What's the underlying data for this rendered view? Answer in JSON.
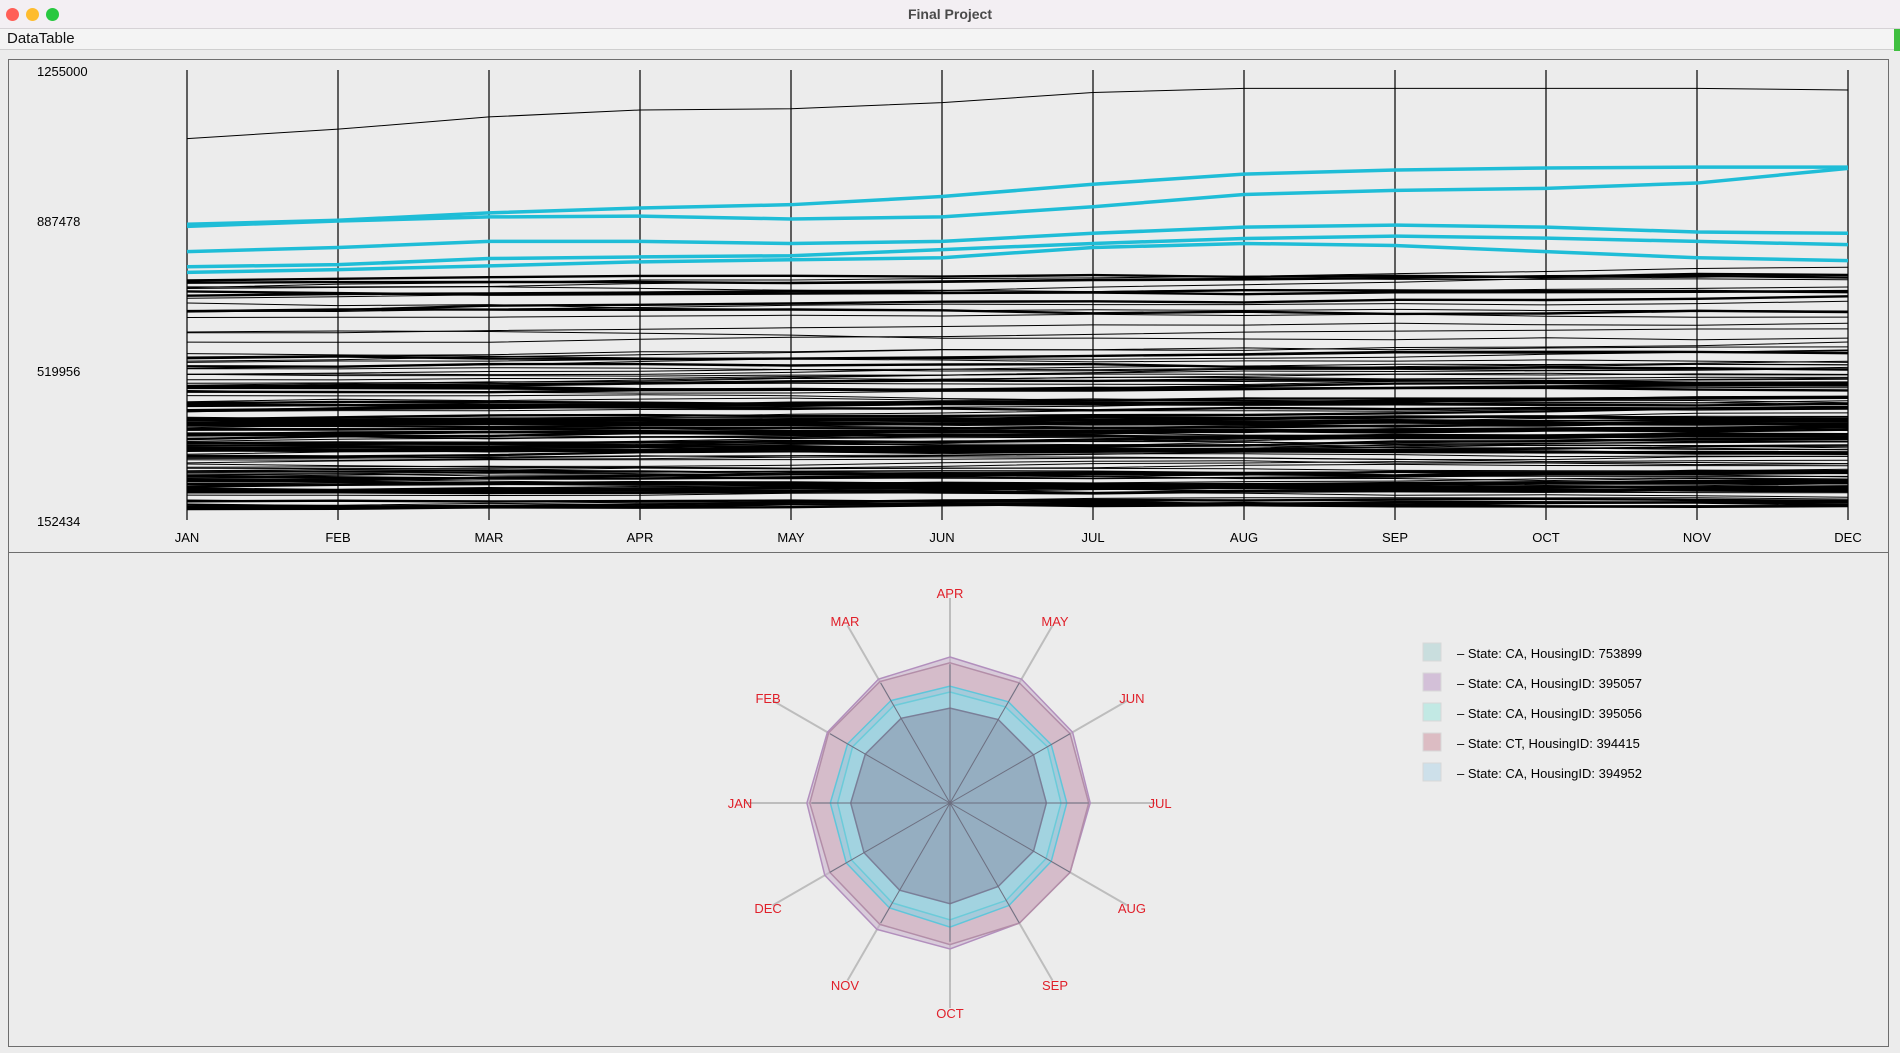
{
  "window": {
    "title": "Final Project"
  },
  "menu": {
    "items": [
      "DataTable"
    ]
  },
  "colors": {
    "highlight": "#1fbdd7",
    "line": "#000000",
    "radar_label": "#e0202a"
  },
  "chart_data": [
    {
      "type": "line",
      "categories": [
        "JAN",
        "FEB",
        "MAR",
        "APR",
        "MAY",
        "JUN",
        "JUL",
        "AUG",
        "SEP",
        "OCT",
        "NOV",
        "DEC"
      ],
      "y_ticks": [
        "1255000",
        "887478",
        "519956",
        "152434"
      ],
      "ylim": [
        152434,
        1255000
      ],
      "grid": "vertical axis lines at each month",
      "highlighted_series": [
        {
          "values": [
            877000,
            887000,
            905000,
            917000,
            925000,
            945000,
            975000,
            1000000,
            1010000,
            1015000,
            1017000,
            1017000
          ]
        },
        {
          "values": [
            872000,
            885000,
            895000,
            897000,
            890000,
            895000,
            920000,
            950000,
            960000,
            965000,
            978000,
            1014000
          ]
        },
        {
          "values": [
            810000,
            820000,
            835000,
            835000,
            830000,
            835000,
            855000,
            870000,
            875000,
            870000,
            858000,
            855000
          ]
        },
        {
          "values": [
            773000,
            778000,
            793000,
            797000,
            800000,
            815000,
            830000,
            842000,
            848000,
            843000,
            835000,
            827000
          ]
        },
        {
          "values": [
            759000,
            766000,
            775000,
            785000,
            790000,
            795000,
            820000,
            830000,
            825000,
            810000,
            795000,
            788000
          ]
        }
      ],
      "top_series": {
        "values": [
          1087000,
          1110000,
          1140000,
          1157000,
          1160000,
          1175000,
          1200000,
          1210000,
          1210000,
          1210000,
          1210000,
          1206000
        ]
      },
      "background_series_count": 140
    },
    {
      "type": "radar",
      "axes": [
        "APR",
        "MAY",
        "JUN",
        "JUL",
        "AUG",
        "SEP",
        "OCT",
        "NOV",
        "DEC",
        "JAN",
        "FEB",
        "MAR"
      ],
      "legend": [
        {
          "label": "– State: CA, HousingID: 753899",
          "color": "#c9dede"
        },
        {
          "label": "– State: CA, HousingID: 395057",
          "color": "#d3c0d8"
        },
        {
          "label": "– State: CA, HousingID: 395056",
          "color": "#c2e9e4"
        },
        {
          "label": "– State: CT, HousingID: 394415",
          "color": "#dcbcc3"
        },
        {
          "label": "– State: CA, HousingID: 394952",
          "color": "#cde0ea"
        }
      ],
      "series": [
        {
          "values": [
            1.0,
            0.98,
            0.97,
            0.96,
            0.95,
            0.95,
            1.0,
            1.0,
            0.99,
            0.98,
            0.97,
            0.98
          ],
          "fill": "#c9b0cc",
          "stroke": "#b28fbd"
        },
        {
          "values": [
            0.96,
            0.95,
            0.95,
            0.95,
            0.95,
            0.95,
            0.97,
            0.96,
            0.95,
            0.96,
            0.96,
            0.96
          ],
          "fill": "#d3b0bd",
          "stroke": "#b38ea8"
        },
        {
          "values": [
            0.8,
            0.8,
            0.8,
            0.8,
            0.8,
            0.81,
            0.85,
            0.83,
            0.82,
            0.82,
            0.81,
            0.81
          ],
          "fill": "#7fd6e8",
          "stroke": "#5fc6da"
        },
        {
          "values": [
            0.76,
            0.76,
            0.77,
            0.76,
            0.76,
            0.77,
            0.8,
            0.79,
            0.78,
            0.77,
            0.77,
            0.77
          ],
          "fill": "#9fdbe6",
          "stroke": "#6ccbd9"
        },
        {
          "values": [
            0.65,
            0.66,
            0.66,
            0.66,
            0.66,
            0.66,
            0.69,
            0.69,
            0.68,
            0.68,
            0.67,
            0.67
          ],
          "fill": "#8a8fa8",
          "stroke": "#7a7f98"
        }
      ]
    }
  ]
}
